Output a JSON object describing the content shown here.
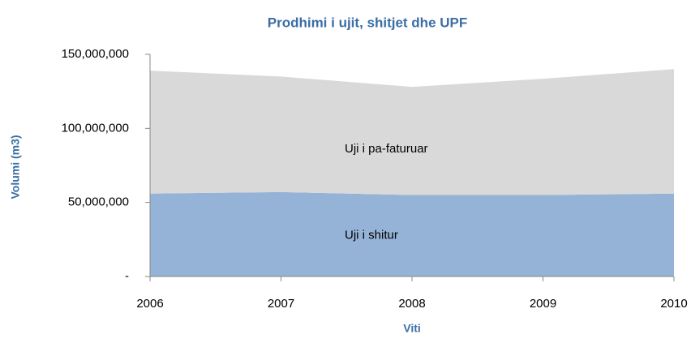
{
  "chart_data": {
    "type": "stacked_area",
    "title": "Prodhimi i ujit,  shitjet dhe UPF",
    "x_label": "Viti",
    "y_label": "Volumi (m3)",
    "x": [
      2006,
      2007,
      2008,
      2009,
      2010
    ],
    "xlim": [
      2006,
      2010
    ],
    "xticks": [
      2006,
      2007,
      2008,
      2009,
      2010
    ],
    "ylim": [
      0,
      150000000
    ],
    "yticks": [
      {
        "value": 0,
        "label": "-"
      },
      {
        "value": 50000000,
        "label": "50,000,000"
      },
      {
        "value": 100000000,
        "label": "100,000,000"
      },
      {
        "value": 150000000,
        "label": "150,000,000"
      }
    ],
    "series": [
      {
        "name": "Uji i shitur",
        "color": "#95b3d7",
        "values": [
          56000000,
          57000000,
          55000000,
          55000000,
          56000000
        ]
      },
      {
        "name": "Uji i pa-faturuar",
        "color": "#d9d9d9",
        "values": [
          83000000,
          78000000,
          73000000,
          78500000,
          84000000
        ]
      }
    ]
  }
}
